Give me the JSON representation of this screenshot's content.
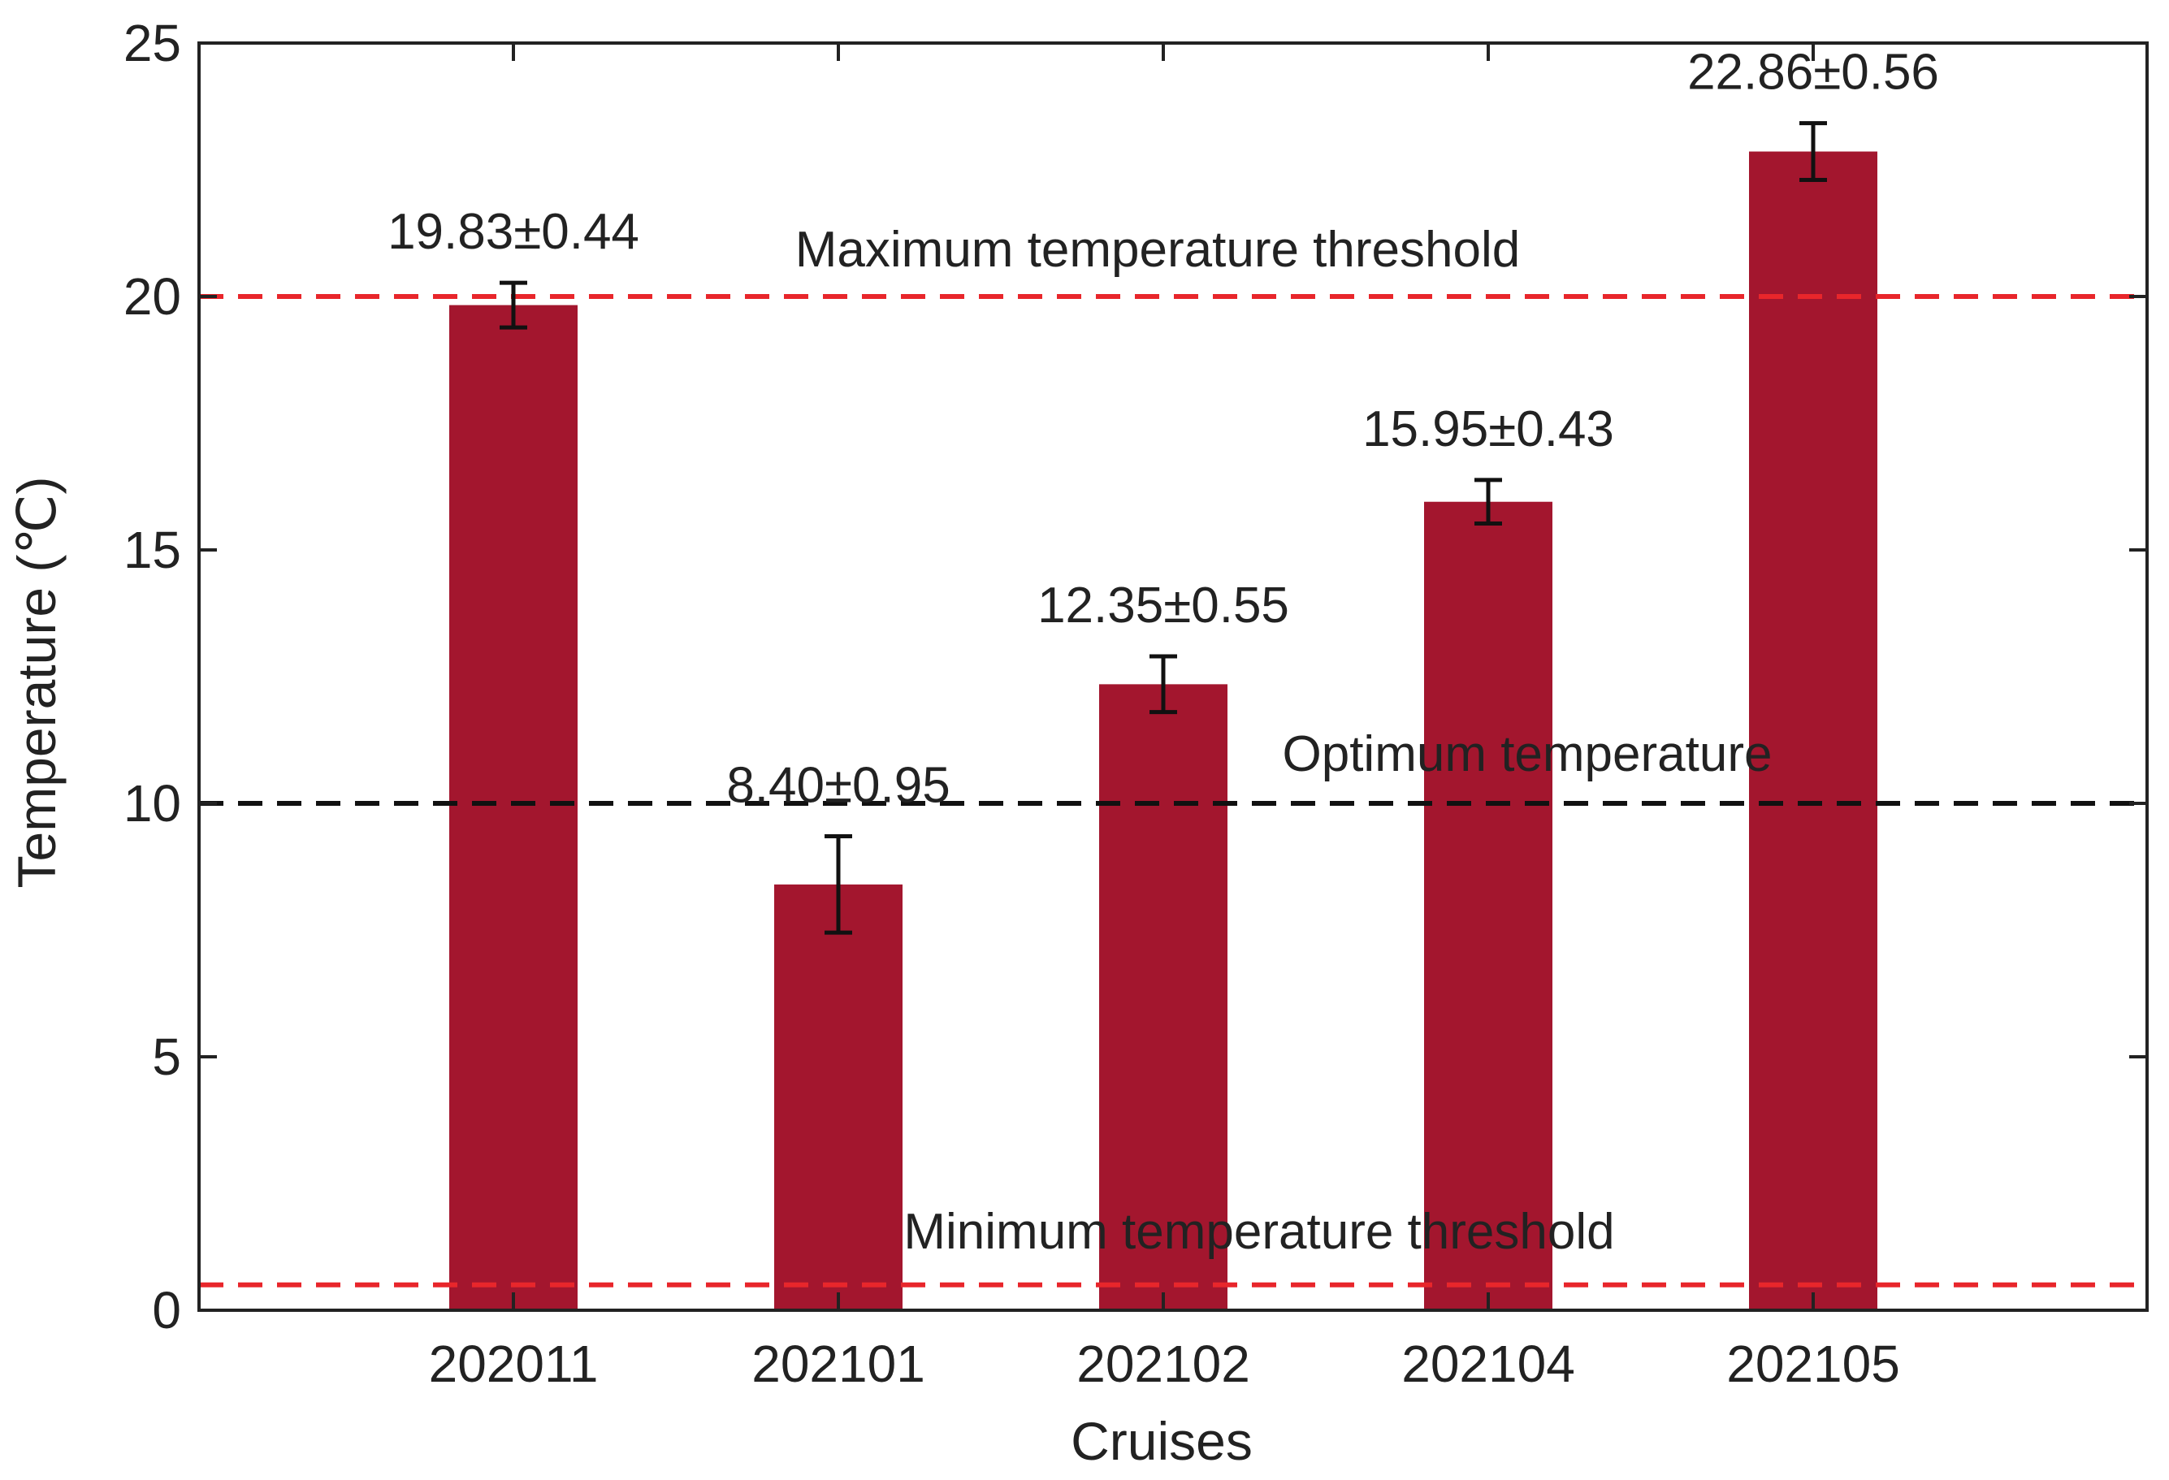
{
  "chart_data": {
    "type": "bar",
    "title": "",
    "xlabel": "Cruises",
    "ylabel": "Temperature (℃)",
    "categories": [
      "202011",
      "202101",
      "202102",
      "202104",
      "202105"
    ],
    "values": [
      19.83,
      8.4,
      12.35,
      15.95,
      22.86
    ],
    "errors": [
      0.44,
      0.95,
      0.55,
      0.43,
      0.56
    ],
    "data_labels": [
      "19.83±0.44",
      "8.40±0.95",
      "12.35±0.55",
      "15.95±0.43",
      "22.86±0.56"
    ],
    "ylim": [
      0,
      25
    ],
    "yticks": [
      0,
      5,
      10,
      15,
      20,
      25
    ],
    "grid": false,
    "bar_color": "#a3162e",
    "reference_lines": [
      {
        "name": "max-threshold",
        "label": "Maximum temperature threshold",
        "value": 20,
        "color": "#e8262b",
        "style": "dashed"
      },
      {
        "name": "optimum",
        "label": "Optimum temperature",
        "value": 10,
        "color": "#111111",
        "style": "dashed"
      },
      {
        "name": "min-threshold",
        "label": "Minimum temperature threshold",
        "value": 0.5,
        "color": "#e8262b",
        "style": "dashed"
      }
    ]
  }
}
